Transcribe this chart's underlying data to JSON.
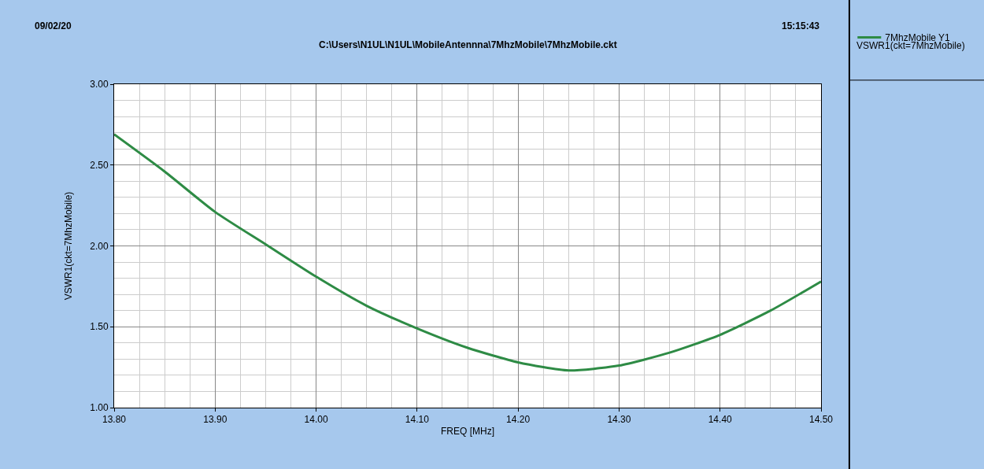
{
  "chart_data": {
    "type": "line",
    "subtitle": "C:\\Users\\N1UL\\N1UL\\MobileAntennna\\7MhzMobile\\7MhzMobile.ckt",
    "xlabel": "FREQ [MHz]",
    "ylabel": "VSWR1(ckt=7MhzMobile)",
    "legend_title": "VSWR1(ckt=7MhzMobile)",
    "annotations": [
      "09/02/20",
      "15:15:43"
    ],
    "x": [
      13.8,
      13.85,
      13.9,
      13.95,
      14.0,
      14.05,
      14.1,
      14.15,
      14.2,
      14.25,
      14.3,
      14.35,
      14.4,
      14.45,
      14.5
    ],
    "series": [
      {
        "name": "7MhzMobile Y1",
        "color": "#2e8b45",
        "values": [
          2.69,
          2.46,
          2.21,
          2.01,
          1.81,
          1.63,
          1.49,
          1.37,
          1.28,
          1.23,
          1.26,
          1.34,
          1.45,
          1.6,
          1.78
        ]
      }
    ],
    "xlim": [
      13.8,
      14.5
    ],
    "xticks": [
      {
        "value": 13.8,
        "label": "13.80"
      },
      {
        "value": 13.9,
        "label": "13.90"
      },
      {
        "value": 14.0,
        "label": "14.00"
      },
      {
        "value": 14.1,
        "label": "14.10"
      },
      {
        "value": 14.2,
        "label": "14.20"
      },
      {
        "value": 14.3,
        "label": "14.30"
      },
      {
        "value": 14.4,
        "label": "14.40"
      },
      {
        "value": 14.5,
        "label": "14.50"
      }
    ],
    "ylim": [
      1.0,
      3.0
    ],
    "yticks": [
      {
        "value": 1.0,
        "label": "1.00"
      },
      {
        "value": 1.5,
        "label": "1.50"
      },
      {
        "value": 2.0,
        "label": "2.00"
      },
      {
        "value": 2.5,
        "label": "2.50"
      },
      {
        "value": 3.0,
        "label": "3.00"
      }
    ],
    "grid": true,
    "legend": "right",
    "marker": "none",
    "line_style": "solid"
  }
}
